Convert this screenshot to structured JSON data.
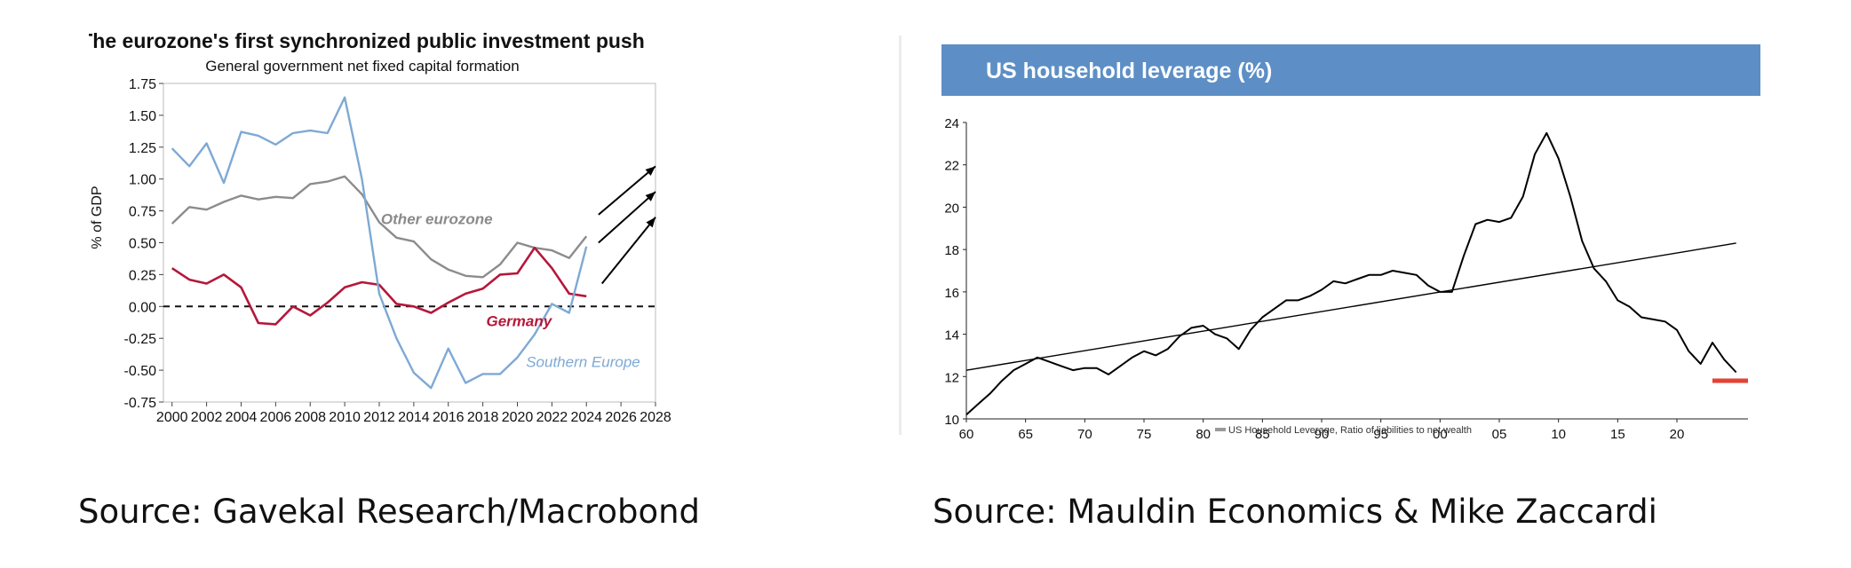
{
  "sources": {
    "left": "Source: Gavekal Research/Macrobond",
    "right": "Source: Mauldin Economics & Mike Zaccardi"
  },
  "chart_data": [
    {
      "type": "line",
      "title": "The eurozone's first synchronized public investment push",
      "subtitle": "General government net fixed capital formation",
      "ylabel": "% of GDP",
      "xlabel": "",
      "xlim": [
        1999.5,
        2028
      ],
      "ylim": [
        -0.75,
        1.75
      ],
      "xticks": [
        "2000",
        "2002",
        "2004",
        "2006",
        "2008",
        "2010",
        "2012",
        "2014",
        "2016",
        "2018",
        "2020",
        "2022",
        "2024",
        "2026",
        "2028"
      ],
      "yticks": [
        "1.75",
        "1.50",
        "1.25",
        "1.00",
        "0.75",
        "0.50",
        "0.25",
        "0.00",
        "-0.25",
        "-0.50",
        "-0.75"
      ],
      "grid": false,
      "zero_line": "dashed",
      "colors": {
        "Other eurozone": "#8c8c8c",
        "Germany": "#b5173a",
        "Southern Europe": "#7ea9d4"
      },
      "series": [
        {
          "name": "Other eurozone",
          "x": [
            2000,
            2001,
            2002,
            2003,
            2004,
            2005,
            2006,
            2007,
            2008,
            2009,
            2010,
            2011,
            2012,
            2013,
            2014,
            2015,
            2016,
            2017,
            2018,
            2019,
            2020,
            2021,
            2022,
            2023,
            2024
          ],
          "values": [
            0.65,
            0.78,
            0.76,
            0.82,
            0.87,
            0.84,
            0.86,
            0.85,
            0.96,
            0.98,
            1.02,
            0.88,
            0.66,
            0.54,
            0.51,
            0.37,
            0.29,
            0.24,
            0.23,
            0.33,
            0.5,
            0.46,
            0.44,
            0.38,
            0.55
          ]
        },
        {
          "name": "Germany",
          "x": [
            2000,
            2001,
            2002,
            2003,
            2004,
            2005,
            2006,
            2007,
            2008,
            2009,
            2010,
            2011,
            2012,
            2013,
            2014,
            2015,
            2016,
            2017,
            2018,
            2019,
            2020,
            2021,
            2022,
            2023,
            2024
          ],
          "values": [
            0.3,
            0.21,
            0.18,
            0.25,
            0.15,
            -0.13,
            -0.14,
            0.0,
            -0.07,
            0.03,
            0.15,
            0.19,
            0.17,
            0.02,
            0.0,
            -0.05,
            0.03,
            0.1,
            0.14,
            0.25,
            0.26,
            0.46,
            0.3,
            0.1,
            0.08
          ]
        },
        {
          "name": "Southern Europe",
          "x": [
            2000,
            2001,
            2002,
            2003,
            2004,
            2005,
            2006,
            2007,
            2008,
            2009,
            2010,
            2011,
            2012,
            2013,
            2014,
            2015,
            2016,
            2017,
            2018,
            2019,
            2020,
            2021,
            2022,
            2023,
            2024
          ],
          "values": [
            1.24,
            1.1,
            1.28,
            0.97,
            1.37,
            1.34,
            1.27,
            1.36,
            1.38,
            1.36,
            1.64,
            1.0,
            0.1,
            -0.25,
            -0.52,
            -0.64,
            -0.33,
            -0.6,
            -0.53,
            -0.53,
            -0.4,
            -0.22,
            0.02,
            -0.05,
            0.47
          ]
        }
      ],
      "annotations": [
        "Other eurozone",
        "Germany",
        "Southern Europe"
      ]
    },
    {
      "type": "line",
      "title": "US household leverage (%)",
      "xlim": [
        1960,
        2026
      ],
      "ylim": [
        10,
        24
      ],
      "xticks": [
        "60",
        "65",
        "70",
        "75",
        "80",
        "85",
        "90",
        "95",
        "00",
        "05",
        "10",
        "15",
        "20"
      ],
      "yticks": [
        "24",
        "22",
        "20",
        "18",
        "16",
        "14",
        "12",
        "10"
      ],
      "grid": false,
      "legend": "bottom-center",
      "colors": {
        "line": "#000000",
        "trend": "#000000",
        "marker": "#e34234",
        "header": "#5d8fc6"
      },
      "series": [
        {
          "name": "US Household Leverage, Ratio of liabilities to net wealth",
          "x": [
            1960,
            1961,
            1962,
            1963,
            1964,
            1965,
            1966,
            1967,
            1968,
            1969,
            1970,
            1971,
            1972,
            1973,
            1974,
            1975,
            1976,
            1977,
            1978,
            1979,
            1980,
            1981,
            1982,
            1983,
            1984,
            1985,
            1986,
            1987,
            1988,
            1989,
            1990,
            1991,
            1992,
            1993,
            1994,
            1995,
            1996,
            1997,
            1998,
            1999,
            2000,
            2001,
            2002,
            2003,
            2004,
            2005,
            2006,
            2007,
            2008,
            2009,
            2010,
            2011,
            2012,
            2013,
            2014,
            2015,
            2016,
            2017,
            2018,
            2019,
            2020,
            2021,
            2022,
            2023,
            2024,
            2025
          ],
          "values": [
            10.2,
            10.7,
            11.2,
            11.8,
            12.3,
            12.6,
            12.9,
            12.7,
            12.5,
            12.3,
            12.4,
            12.4,
            12.1,
            12.5,
            12.9,
            13.2,
            13.0,
            13.3,
            13.9,
            14.3,
            14.4,
            14.0,
            13.8,
            13.3,
            14.2,
            14.8,
            15.2,
            15.6,
            15.6,
            15.8,
            16.1,
            16.5,
            16.4,
            16.6,
            16.8,
            16.8,
            17.0,
            16.9,
            16.8,
            16.3,
            16.0,
            16.0,
            17.7,
            19.2,
            19.4,
            19.3,
            19.5,
            20.5,
            22.5,
            23.5,
            22.3,
            20.5,
            18.4,
            17.1,
            16.5,
            15.6,
            15.3,
            14.8,
            14.7,
            14.6,
            14.2,
            13.2,
            12.6,
            13.6,
            12.8,
            12.2
          ]
        },
        {
          "name": "trend",
          "x": [
            1960,
            2025
          ],
          "values": [
            12.3,
            18.3
          ]
        },
        {
          "name": "marker",
          "x": [
            2023,
            2026
          ],
          "values": [
            11.8,
            11.8
          ]
        }
      ]
    }
  ]
}
